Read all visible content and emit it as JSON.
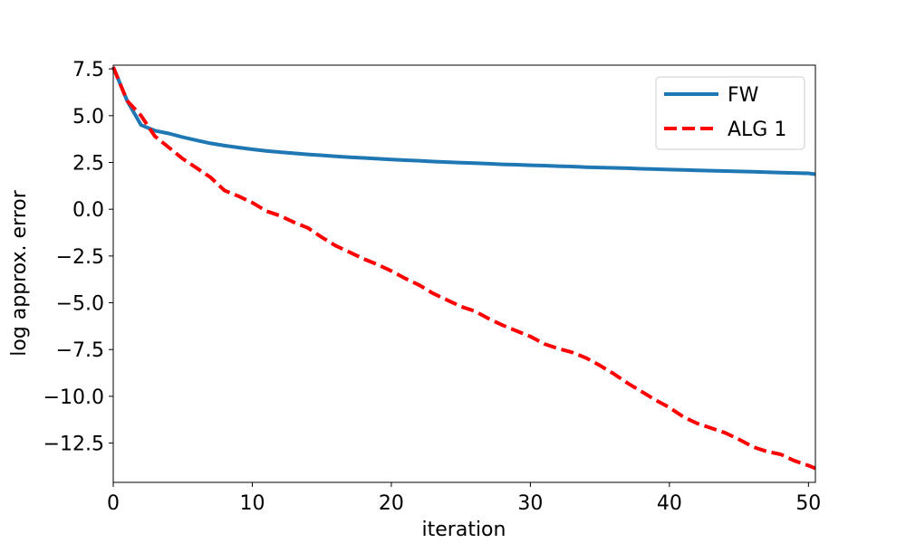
{
  "chart_data": {
    "type": "line",
    "title": "",
    "xlabel": "iteration",
    "ylabel": "log approx. error",
    "xlim": [
      0,
      50.5
    ],
    "ylim": [
      -14.6,
      7.7
    ],
    "xticks": [
      0,
      10,
      20,
      30,
      40,
      50
    ],
    "xtick_labels": [
      "0",
      "10",
      "20",
      "30",
      "40",
      "50"
    ],
    "yticks": [
      7.5,
      5.0,
      2.5,
      0.0,
      -2.5,
      -5.0,
      -7.5,
      -10.0,
      -12.5
    ],
    "ytick_labels": [
      "7.5",
      "5.0",
      "2.5",
      "0.0",
      "−2.5",
      "−5.0",
      "−7.5",
      "−10.0",
      "−12.5"
    ],
    "grid": false,
    "legend_position": "top-right",
    "series": [
      {
        "name": "FW",
        "color": "#1f77b4",
        "style": "solid",
        "x": [
          0,
          1,
          2,
          3,
          4,
          5,
          6,
          7,
          8,
          9,
          10,
          11,
          12,
          13,
          14,
          15,
          16,
          17,
          18,
          19,
          20,
          21,
          22,
          23,
          24,
          25,
          26,
          27,
          28,
          29,
          30,
          31,
          32,
          33,
          34,
          35,
          36,
          37,
          38,
          39,
          40,
          41,
          42,
          43,
          44,
          45,
          46,
          47,
          48,
          49,
          50,
          50.5
        ],
        "y": [
          7.6,
          5.8,
          4.5,
          4.2,
          4.05,
          3.85,
          3.68,
          3.52,
          3.4,
          3.3,
          3.2,
          3.12,
          3.05,
          2.99,
          2.93,
          2.88,
          2.83,
          2.78,
          2.74,
          2.7,
          2.66,
          2.62,
          2.59,
          2.55,
          2.52,
          2.49,
          2.46,
          2.43,
          2.4,
          2.38,
          2.35,
          2.33,
          2.3,
          2.28,
          2.25,
          2.23,
          2.21,
          2.19,
          2.16,
          2.14,
          2.12,
          2.1,
          2.08,
          2.06,
          2.04,
          2.02,
          2.0,
          1.98,
          1.96,
          1.94,
          1.92,
          1.87
        ]
      },
      {
        "name": "ALG 1",
        "color": "#ff0000",
        "style": "dashed",
        "x": [
          0,
          1,
          2,
          3,
          4,
          5,
          6,
          7,
          8,
          9,
          10,
          11,
          12,
          13,
          14,
          15,
          16,
          17,
          18,
          19,
          20,
          21,
          22,
          23,
          24,
          25,
          26,
          27,
          28,
          29,
          30,
          31,
          32,
          33,
          34,
          35,
          36,
          37,
          38,
          39,
          40,
          41,
          42,
          43,
          44,
          45,
          46,
          47,
          48,
          49,
          50,
          50.5
        ],
        "y": [
          7.6,
          5.8,
          5.0,
          3.9,
          3.3,
          2.7,
          2.2,
          1.7,
          1.0,
          0.7,
          0.35,
          -0.1,
          -0.35,
          -0.7,
          -1.0,
          -1.5,
          -1.95,
          -2.3,
          -2.65,
          -2.95,
          -3.3,
          -3.7,
          -4.05,
          -4.5,
          -4.85,
          -5.2,
          -5.45,
          -5.85,
          -6.2,
          -6.5,
          -6.8,
          -7.2,
          -7.45,
          -7.65,
          -7.95,
          -8.35,
          -8.8,
          -9.3,
          -9.75,
          -10.2,
          -10.6,
          -11.1,
          -11.45,
          -11.7,
          -11.95,
          -12.3,
          -12.7,
          -12.95,
          -13.1,
          -13.45,
          -13.7,
          -13.85
        ]
      }
    ]
  }
}
